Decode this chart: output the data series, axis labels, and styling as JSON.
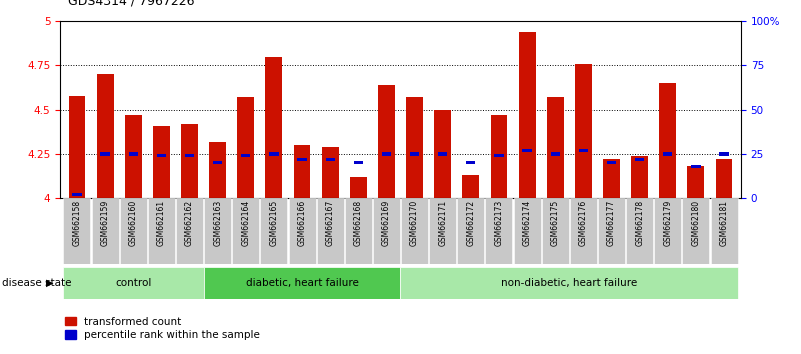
{
  "title": "GDS4314 / 7967226",
  "samples": [
    "GSM662158",
    "GSM662159",
    "GSM662160",
    "GSM662161",
    "GSM662162",
    "GSM662163",
    "GSM662164",
    "GSM662165",
    "GSM662166",
    "GSM662167",
    "GSM662168",
    "GSM662169",
    "GSM662170",
    "GSM662171",
    "GSM662172",
    "GSM662173",
    "GSM662174",
    "GSM662175",
    "GSM662176",
    "GSM662177",
    "GSM662178",
    "GSM662179",
    "GSM662180",
    "GSM662181"
  ],
  "red_values": [
    4.58,
    4.7,
    4.47,
    4.41,
    4.42,
    4.32,
    4.57,
    4.8,
    4.3,
    4.29,
    4.12,
    4.64,
    4.57,
    4.5,
    4.13,
    4.47,
    4.94,
    4.57,
    4.76,
    4.22,
    4.24,
    4.65,
    4.18,
    4.22
  ],
  "blue_percentiles": [
    2,
    25,
    25,
    24,
    24,
    20,
    24,
    25,
    22,
    22,
    20,
    25,
    25,
    25,
    20,
    24,
    27,
    25,
    27,
    20,
    22,
    25,
    18,
    25
  ],
  "groups": [
    {
      "label": "control",
      "start": 0,
      "end": 5,
      "color": "#a8e8a8"
    },
    {
      "label": "diabetic, heart failure",
      "start": 5,
      "end": 12,
      "color": "#50c850"
    },
    {
      "label": "non-diabetic, heart failure",
      "start": 12,
      "end": 24,
      "color": "#a8e8a8"
    }
  ],
  "ylim_left": [
    4.0,
    5.0
  ],
  "ylim_right": [
    0,
    100
  ],
  "yticks_left": [
    4.0,
    4.25,
    4.5,
    4.75,
    5.0
  ],
  "ytick_labels_left": [
    "4",
    "4.25",
    "4.5",
    "4.75",
    "5"
  ],
  "yticks_right": [
    0,
    25,
    50,
    75,
    100
  ],
  "ytick_labels_right": [
    "0",
    "25",
    "50",
    "75",
    "100%"
  ],
  "bar_color_red": "#cc1100",
  "bar_color_blue": "#0000cc",
  "grid_color": "black",
  "tick_bg_color": "#c8c8c8",
  "disease_state_label": "disease state",
  "legend_red": "transformed count",
  "legend_blue": "percentile rank within the sample"
}
